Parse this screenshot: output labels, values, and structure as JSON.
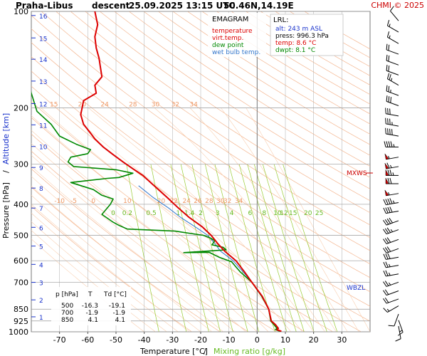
{
  "header": {
    "station": "Praha-Libus",
    "mode": "descent",
    "datetime": "25.09.2025 13:15 UTC",
    "coords": "50.46N,14.19E",
    "copyright": "CHMI © 2025"
  },
  "legend": {
    "title": "EMAGRAM",
    "items": [
      {
        "label": "temperature",
        "color": "#dd0000"
      },
      {
        "label": "virt.temp.",
        "color": "#dd0000"
      },
      {
        "label": "dew point",
        "color": "#008800"
      },
      {
        "label": "wet bulb temp.",
        "color": "#3377cc"
      }
    ]
  },
  "lrl": {
    "title": "LRL:",
    "lines": [
      {
        "text": "alt: 243 m ASL",
        "color": "#1a33cc"
      },
      {
        "text": "press: 996.3 hPa",
        "color": "#000000"
      },
      {
        "text": "temp: 8.6 °C",
        "color": "#dd0000"
      },
      {
        "text": "dwpt: 8.1 °C",
        "color": "#008800"
      }
    ]
  },
  "table": {
    "headers": [
      "p [hPa]",
      "T",
      "Td [°C]"
    ],
    "rows": [
      [
        "500",
        "-16.3",
        "-19.1"
      ],
      [
        "700",
        "-1.9",
        "-1.9"
      ],
      [
        "850",
        "4.1",
        "4.1"
      ]
    ]
  },
  "markers": {
    "mxws": "MXWS",
    "wbzl": "WBZL"
  },
  "colors": {
    "temperature": "#dd0000",
    "dewpoint": "#008800",
    "wetbulb": "#3377cc",
    "grid": "#999999",
    "isotherm": "#aaaaaa",
    "dry_adiabat": "#f4b690",
    "moist_adiabat": "#f9cfb0",
    "mixing_ratio": "#99cc33",
    "altitude": "#1a33cc",
    "mixing_ratio_label": "#66bb22",
    "sat_ratio_label": "#ee9966"
  },
  "chart_data": {
    "type": "line",
    "title": "Praha-Libus descent 25.09.2025 13:15 UTC 50.46N,14.19E",
    "xlabel": "Temperature [°C]",
    "xlabel2": "Mixing ratio [g/kg]",
    "ylabel": "Pressure [hPa]",
    "ylabel2": "Altitude [km]",
    "y_scale": "log",
    "xlim": [
      -80,
      40
    ],
    "ylim": [
      1000,
      100
    ],
    "x_ticks": [
      -70,
      -60,
      -50,
      -40,
      -30,
      -20,
      -10,
      0,
      10,
      20,
      30
    ],
    "y_ticks": [
      100,
      200,
      300,
      400,
      500,
      600,
      700,
      850,
      925,
      1000
    ],
    "altitude_ticks": [
      {
        "km": 1,
        "p": 898
      },
      {
        "km": 2,
        "p": 795
      },
      {
        "km": 3,
        "p": 701
      },
      {
        "km": 4,
        "p": 616
      },
      {
        "km": 5,
        "p": 540
      },
      {
        "km": 6,
        "p": 472
      },
      {
        "km": 7,
        "p": 411
      },
      {
        "km": 8,
        "p": 356
      },
      {
        "km": 9,
        "p": 307
      },
      {
        "km": 10,
        "p": 264
      },
      {
        "km": 11,
        "p": 226
      },
      {
        "km": 12,
        "p": 194
      },
      {
        "km": 13,
        "p": 165
      },
      {
        "km": 14,
        "p": 141
      },
      {
        "km": 15,
        "p": 121
      },
      {
        "km": 16,
        "p": 103
      }
    ],
    "mixing_ratio_labels": [
      "0",
      "0.2",
      "0.5",
      "1",
      "1.4",
      "2",
      "3",
      "4",
      "6",
      "8",
      "10",
      "12",
      "15",
      "20",
      "25"
    ],
    "saturation_labels_400": [
      "-10",
      "-5",
      "0",
      "10",
      "20",
      "22",
      "24",
      "26",
      "28",
      "30",
      "32",
      "34"
    ],
    "saturation_labels_200": [
      "15",
      "20",
      "24",
      "28",
      "30",
      "32",
      "34"
    ],
    "series": [
      {
        "name": "temperature",
        "color": "#dd0000",
        "points": [
          [
            8.6,
            996.3
          ],
          [
            7.0,
            985
          ],
          [
            7.5,
            975
          ],
          [
            6.5,
            950
          ],
          [
            5.0,
            925
          ],
          [
            4.1,
            850
          ],
          [
            1.8,
            775
          ],
          [
            -1.9,
            700
          ],
          [
            -4.5,
            650
          ],
          [
            -7.5,
            600
          ],
          [
            -11.5,
            560
          ],
          [
            -14.0,
            530
          ],
          [
            -16.3,
            500
          ],
          [
            -19.5,
            470
          ],
          [
            -24.0,
            440
          ],
          [
            -28.0,
            410
          ],
          [
            -32.0,
            380
          ],
          [
            -36.5,
            350
          ],
          [
            -40.5,
            325
          ],
          [
            -44.0,
            310
          ],
          [
            -47.5,
            295
          ],
          [
            -51.0,
            280
          ],
          [
            -54.5,
            265
          ],
          [
            -57.5,
            250
          ],
          [
            -59.0,
            240
          ],
          [
            -61.5,
            225
          ],
          [
            -62.5,
            210
          ],
          [
            -62.0,
            200
          ],
          [
            -61.5,
            190
          ],
          [
            -57.0,
            180
          ],
          [
            -57.5,
            170
          ],
          [
            -55.0,
            160
          ],
          [
            -55.5,
            150
          ],
          [
            -56.0,
            140
          ],
          [
            -57.0,
            130
          ],
          [
            -57.5,
            120
          ],
          [
            -56.5,
            110
          ],
          [
            -57.5,
            100
          ]
        ]
      },
      {
        "name": "dew point",
        "color": "#008800",
        "points": [
          [
            8.1,
            996.3
          ],
          [
            6.5,
            985
          ],
          [
            7.0,
            975
          ],
          [
            6.0,
            950
          ],
          [
            4.8,
            925
          ],
          [
            4.1,
            850
          ],
          [
            1.6,
            775
          ],
          [
            -1.9,
            700
          ],
          [
            -6.0,
            650
          ],
          [
            -8.0,
            620
          ],
          [
            -9.0,
            605
          ],
          [
            -13.5,
            585
          ],
          [
            -17.0,
            565
          ],
          [
            -26.0,
            566
          ],
          [
            -11.0,
            555
          ],
          [
            -12.0,
            545
          ],
          [
            -16.0,
            535
          ],
          [
            -15.0,
            520
          ],
          [
            -16.5,
            510
          ],
          [
            -19.1,
            500
          ],
          [
            -29.0,
            485
          ],
          [
            -46.0,
            478
          ],
          [
            -49.0,
            465
          ],
          [
            -51.0,
            455
          ],
          [
            -55.0,
            430
          ],
          [
            -52.0,
            400
          ],
          [
            -51.0,
            385
          ],
          [
            -55.0,
            375
          ],
          [
            -58.0,
            360
          ],
          [
            -66.0,
            342
          ],
          [
            -53.0,
            332
          ],
          [
            -49.0,
            330
          ],
          [
            -44.0,
            320
          ],
          [
            -50.0,
            312
          ],
          [
            -65.0,
            305
          ],
          [
            -67.0,
            295
          ],
          [
            -66.0,
            285
          ],
          [
            -60.0,
            278
          ],
          [
            -59.0,
            270
          ],
          [
            -64.0,
            260
          ],
          [
            -70.0,
            245
          ],
          [
            -73.0,
            225
          ],
          [
            -78.0,
            205
          ],
          [
            -80.0,
            180
          ],
          [
            -81.0,
            165
          ],
          [
            -84.0,
            155
          ]
        ]
      },
      {
        "name": "wet bulb temp.",
        "color": "#3377cc",
        "points": [
          [
            8.3,
            996.3
          ],
          [
            6.7,
            985
          ],
          [
            7.2,
            975
          ],
          [
            6.2,
            950
          ],
          [
            4.9,
            925
          ],
          [
            4.1,
            850
          ],
          [
            1.7,
            775
          ],
          [
            -1.9,
            700
          ],
          [
            -5.0,
            650
          ],
          [
            -8.5,
            600
          ],
          [
            -13.0,
            560
          ],
          [
            -15.0,
            530
          ],
          [
            -17.5,
            500
          ],
          [
            -22.0,
            470
          ],
          [
            -27.0,
            440
          ],
          [
            -31.5,
            410
          ],
          [
            -37.0,
            380
          ],
          [
            -42.0,
            350
          ]
        ]
      }
    ],
    "wind_barbs": [
      {
        "p": 960,
        "dir": 170,
        "kt": 10
      },
      {
        "p": 920,
        "dir": 160,
        "kt": 15
      },
      {
        "p": 880,
        "dir": 200,
        "kt": 10
      },
      {
        "p": 830,
        "dir": 240,
        "kt": 15
      },
      {
        "p": 790,
        "dir": 250,
        "kt": 20
      },
      {
        "p": 745,
        "dir": 250,
        "kt": 20
      },
      {
        "p": 700,
        "dir": 250,
        "kt": 25
      },
      {
        "p": 660,
        "dir": 260,
        "kt": 25
      },
      {
        "p": 620,
        "dir": 260,
        "kt": 25
      },
      {
        "p": 585,
        "dir": 260,
        "kt": 30
      },
      {
        "p": 550,
        "dir": 250,
        "kt": 30
      },
      {
        "p": 515,
        "dir": 250,
        "kt": 30
      },
      {
        "p": 480,
        "dir": 250,
        "kt": 35
      },
      {
        "p": 450,
        "dir": 250,
        "kt": 40
      },
      {
        "p": 420,
        "dir": 260,
        "kt": 40
      },
      {
        "p": 395,
        "dir": 260,
        "kt": 45
      },
      {
        "p": 370,
        "dir": 260,
        "kt": 55
      },
      {
        "p": 345,
        "dir": 270,
        "kt": 70
      },
      {
        "p": 325,
        "dir": 270,
        "kt": 75
      },
      {
        "p": 305,
        "dir": 260,
        "kt": 65
      },
      {
        "p": 285,
        "dir": 260,
        "kt": 55
      },
      {
        "p": 265,
        "dir": 270,
        "kt": 45
      },
      {
        "p": 245,
        "dir": 280,
        "kt": 40
      },
      {
        "p": 228,
        "dir": 280,
        "kt": 35
      },
      {
        "p": 212,
        "dir": 280,
        "kt": 30
      },
      {
        "p": 197,
        "dir": 290,
        "kt": 30
      },
      {
        "p": 183,
        "dir": 290,
        "kt": 25
      },
      {
        "p": 170,
        "dir": 300,
        "kt": 25
      },
      {
        "p": 158,
        "dir": 290,
        "kt": 20
      },
      {
        "p": 147,
        "dir": 290,
        "kt": 20
      },
      {
        "p": 136,
        "dir": 290,
        "kt": 20
      },
      {
        "p": 126,
        "dir": 300,
        "kt": 15
      },
      {
        "p": 116,
        "dir": 300,
        "kt": 15
      },
      {
        "p": 107,
        "dir": 320,
        "kt": 10
      }
    ]
  }
}
